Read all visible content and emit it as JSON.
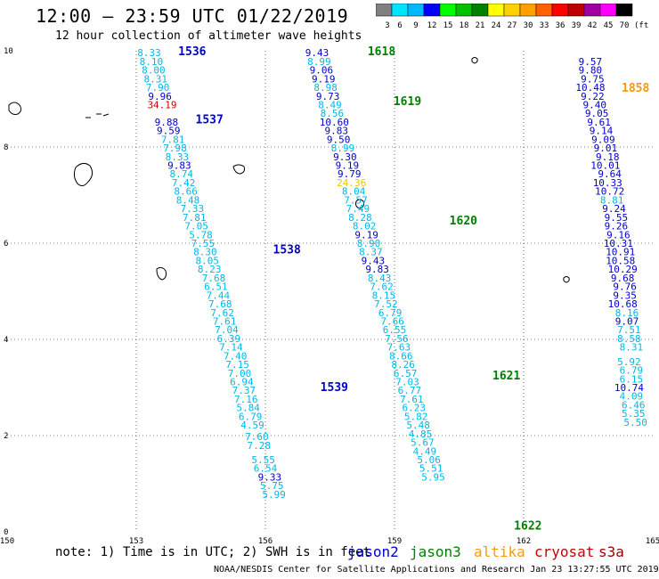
{
  "header": {
    "title": "12:00 – 23:59 UTC 01/22/2019",
    "subtitle": "12 hour collection of altimeter wave heights"
  },
  "color_scale": {
    "labels": [
      "3",
      "6",
      "9",
      "12",
      "15",
      "18",
      "21",
      "24",
      "27",
      "30",
      "33",
      "36",
      "39",
      "42",
      "45",
      "70"
    ],
    "unit": "(ft)",
    "colors": [
      "#808080",
      "#00e5ff",
      "#00b8ff",
      "#0000ff",
      "#00ff00",
      "#00c000",
      "#008000",
      "#ffff00",
      "#ffd000",
      "#ffa000",
      "#ff6000",
      "#ff0000",
      "#c00000",
      "#a000a0",
      "#ff00ff",
      "#000000"
    ]
  },
  "footer": {
    "note": "note: 1) Time is in UTC; 2) SWH is in feet",
    "credit": "NOAA/NESDIS Center for Satellite Applications and Research   Jan 23 13:27:55 UTC 2019",
    "satellites": [
      {
        "name": "jason2",
        "color": "#0000cc"
      },
      {
        "name": "jason3",
        "color": "#008000"
      },
      {
        "name": "altika",
        "color": "#ff9900"
      },
      {
        "name": "cryosat",
        "color": "#cc0000"
      },
      {
        "name": "s3a",
        "color": "#990000"
      }
    ]
  },
  "chart_data": {
    "type": "scatter",
    "title": "12:00 – 23:59 UTC 01/22/2019",
    "xlim": [
      150,
      165
    ],
    "ylim": [
      0,
      10
    ],
    "xticks": [
      "150",
      "153",
      "156",
      "159",
      "162",
      "165"
    ],
    "yticks": [
      "0",
      "2",
      "4",
      "6",
      "8",
      "10"
    ],
    "grid": "dotted",
    "series": [
      {
        "name": "jason2",
        "color": "#0000cc",
        "points": [
          {
            "x": 153.3,
            "y": 9.96,
            "v": "8.33",
            "c": "c"
          },
          {
            "x": 153.35,
            "y": 9.78,
            "v": "8.10",
            "c": "c"
          },
          {
            "x": 153.4,
            "y": 9.6,
            "v": "8.00",
            "c": "c"
          },
          {
            "x": 153.45,
            "y": 9.42,
            "v": "8.31",
            "c": "c"
          },
          {
            "x": 153.5,
            "y": 9.24,
            "v": "7.90",
            "c": "c"
          },
          {
            "x": 153.55,
            "y": 9.06,
            "v": "9.96",
            "c": "b"
          },
          {
            "x": 153.6,
            "y": 8.88,
            "v": "34.19",
            "c": "r"
          },
          {
            "x": 153.7,
            "y": 8.52,
            "v": "9.88",
            "c": "b"
          },
          {
            "x": 153.75,
            "y": 8.34,
            "v": "9.59",
            "c": "b"
          },
          {
            "x": 153.85,
            "y": 8.16,
            "v": "7.81",
            "c": "c"
          },
          {
            "x": 153.9,
            "y": 7.98,
            "v": "7.98",
            "c": "c"
          },
          {
            "x": 153.95,
            "y": 7.8,
            "v": "8.33",
            "c": "c"
          },
          {
            "x": 154.0,
            "y": 7.62,
            "v": "9.83",
            "c": "b"
          },
          {
            "x": 154.05,
            "y": 7.44,
            "v": "8.74",
            "c": "c"
          },
          {
            "x": 154.1,
            "y": 7.26,
            "v": "7.42",
            "c": "c"
          },
          {
            "x": 154.15,
            "y": 7.08,
            "v": "8.66",
            "c": "c"
          },
          {
            "x": 154.2,
            "y": 6.9,
            "v": "8.48",
            "c": "c"
          },
          {
            "x": 154.3,
            "y": 6.72,
            "v": "7.33",
            "c": "c"
          },
          {
            "x": 154.35,
            "y": 6.54,
            "v": "7.81",
            "c": "c"
          },
          {
            "x": 154.4,
            "y": 6.36,
            "v": "7.05",
            "c": "c"
          },
          {
            "x": 154.5,
            "y": 6.18,
            "v": "5.78",
            "c": "c"
          },
          {
            "x": 154.55,
            "y": 6.0,
            "v": "7.55",
            "c": "c"
          },
          {
            "x": 154.6,
            "y": 5.82,
            "v": "8.30",
            "c": "c"
          },
          {
            "x": 154.65,
            "y": 5.64,
            "v": "8.05",
            "c": "c"
          },
          {
            "x": 154.7,
            "y": 5.46,
            "v": "8.23",
            "c": "c"
          },
          {
            "x": 154.8,
            "y": 5.28,
            "v": "7.68",
            "c": "c"
          },
          {
            "x": 154.85,
            "y": 5.1,
            "v": "6.51",
            "c": "c"
          },
          {
            "x": 154.9,
            "y": 4.92,
            "v": "7.44",
            "c": "c"
          },
          {
            "x": 154.95,
            "y": 4.74,
            "v": "7.68",
            "c": "c"
          },
          {
            "x": 155.0,
            "y": 4.56,
            "v": "7.62",
            "c": "c"
          },
          {
            "x": 155.05,
            "y": 4.38,
            "v": "7.61",
            "c": "c"
          },
          {
            "x": 155.1,
            "y": 4.2,
            "v": "7.04",
            "c": "c"
          },
          {
            "x": 155.15,
            "y": 4.02,
            "v": "6.39",
            "c": "c"
          },
          {
            "x": 155.2,
            "y": 3.84,
            "v": "7.14",
            "c": "c"
          },
          {
            "x": 155.3,
            "y": 3.66,
            "v": "7.40",
            "c": "c"
          },
          {
            "x": 155.35,
            "y": 3.48,
            "v": "7.15",
            "c": "c"
          },
          {
            "x": 155.4,
            "y": 3.3,
            "v": "7.00",
            "c": "c"
          },
          {
            "x": 155.45,
            "y": 3.12,
            "v": "6.94",
            "c": "c"
          },
          {
            "x": 155.5,
            "y": 2.94,
            "v": "7.37",
            "c": "c"
          },
          {
            "x": 155.55,
            "y": 2.76,
            "v": "7.16",
            "c": "c"
          },
          {
            "x": 155.6,
            "y": 2.58,
            "v": "5.84",
            "c": "c"
          },
          {
            "x": 155.65,
            "y": 2.4,
            "v": "6.79",
            "c": "c"
          },
          {
            "x": 155.7,
            "y": 2.22,
            "v": "4.59",
            "c": "c"
          },
          {
            "x": 155.8,
            "y": 1.98,
            "v": "7.60",
            "c": "c"
          },
          {
            "x": 155.85,
            "y": 1.8,
            "v": "7.28",
            "c": "c"
          },
          {
            "x": 155.95,
            "y": 1.5,
            "v": "5.55",
            "c": "c"
          },
          {
            "x": 156.0,
            "y": 1.32,
            "v": "6.54",
            "c": "c"
          },
          {
            "x": 156.1,
            "y": 1.14,
            "v": "9.33",
            "c": "b"
          },
          {
            "x": 156.15,
            "y": 0.96,
            "v": "5.75",
            "c": "c"
          },
          {
            "x": 156.2,
            "y": 0.78,
            "v": "5.99",
            "c": "c"
          },
          {
            "x": 157.2,
            "y": 9.96,
            "v": "9.43",
            "c": "b"
          },
          {
            "x": 157.25,
            "y": 9.78,
            "v": "8.99",
            "c": "c"
          },
          {
            "x": 157.3,
            "y": 9.6,
            "v": "9.06",
            "c": "b"
          },
          {
            "x": 157.35,
            "y": 9.42,
            "v": "9.19",
            "c": "b"
          },
          {
            "x": 157.4,
            "y": 9.24,
            "v": "8.98",
            "c": "c"
          },
          {
            "x": 157.45,
            "y": 9.06,
            "v": "9.73",
            "c": "b"
          },
          {
            "x": 157.5,
            "y": 8.88,
            "v": "8.49",
            "c": "c"
          },
          {
            "x": 157.55,
            "y": 8.7,
            "v": "8.56",
            "c": "c"
          },
          {
            "x": 157.6,
            "y": 8.52,
            "v": "10.60",
            "c": "b"
          },
          {
            "x": 157.65,
            "y": 8.34,
            "v": "9.83",
            "c": "b"
          },
          {
            "x": 157.7,
            "y": 8.16,
            "v": "9.50",
            "c": "b"
          },
          {
            "x": 157.8,
            "y": 7.98,
            "v": "8.99",
            "c": "c"
          },
          {
            "x": 157.85,
            "y": 7.8,
            "v": "9.30",
            "c": "b"
          },
          {
            "x": 157.9,
            "y": 7.62,
            "v": "9.19",
            "c": "b"
          },
          {
            "x": 157.95,
            "y": 7.44,
            "v": "9.79",
            "c": "b"
          },
          {
            "x": 158.0,
            "y": 7.26,
            "v": "24.36",
            "c": "y"
          },
          {
            "x": 158.05,
            "y": 7.08,
            "v": "8.04",
            "c": "c"
          },
          {
            "x": 158.1,
            "y": 6.9,
            "v": "7.57",
            "c": "c"
          },
          {
            "x": 158.15,
            "y": 6.72,
            "v": "7.49",
            "c": "c"
          },
          {
            "x": 158.2,
            "y": 6.54,
            "v": "8.28",
            "c": "c"
          },
          {
            "x": 158.3,
            "y": 6.36,
            "v": "8.02",
            "c": "c"
          },
          {
            "x": 158.35,
            "y": 6.18,
            "v": "9.19",
            "c": "b"
          },
          {
            "x": 158.4,
            "y": 6.0,
            "v": "8.90",
            "c": "c"
          },
          {
            "x": 158.45,
            "y": 5.82,
            "v": "8.37",
            "c": "c"
          },
          {
            "x": 158.5,
            "y": 5.64,
            "v": "9.43",
            "c": "b"
          },
          {
            "x": 158.6,
            "y": 5.46,
            "v": "9.83",
            "c": "b"
          },
          {
            "x": 158.65,
            "y": 5.28,
            "v": "8.43",
            "c": "c"
          },
          {
            "x": 158.7,
            "y": 5.1,
            "v": "7.62",
            "c": "c"
          },
          {
            "x": 158.75,
            "y": 4.92,
            "v": "8.15",
            "c": "c"
          },
          {
            "x": 158.8,
            "y": 4.74,
            "v": "7.52",
            "c": "c"
          },
          {
            "x": 158.9,
            "y": 4.56,
            "v": "6.79",
            "c": "c"
          },
          {
            "x": 158.95,
            "y": 4.38,
            "v": "7.66",
            "c": "c"
          },
          {
            "x": 159.0,
            "y": 4.2,
            "v": "6.55",
            "c": "c"
          },
          {
            "x": 159.05,
            "y": 4.02,
            "v": "7.56",
            "c": "c"
          },
          {
            "x": 159.1,
            "y": 3.84,
            "v": "7.63",
            "c": "c"
          },
          {
            "x": 159.15,
            "y": 3.66,
            "v": "8.66",
            "c": "c"
          },
          {
            "x": 159.2,
            "y": 3.48,
            "v": "8.26",
            "c": "c"
          },
          {
            "x": 159.25,
            "y": 3.3,
            "v": "6.57",
            "c": "c"
          },
          {
            "x": 159.3,
            "y": 3.12,
            "v": "7.03",
            "c": "c"
          },
          {
            "x": 159.35,
            "y": 2.94,
            "v": "6.77",
            "c": "c"
          },
          {
            "x": 159.4,
            "y": 2.76,
            "v": "7.61",
            "c": "c"
          },
          {
            "x": 159.45,
            "y": 2.58,
            "v": "6.23",
            "c": "c"
          },
          {
            "x": 159.5,
            "y": 2.4,
            "v": "5.82",
            "c": "c"
          },
          {
            "x": 159.55,
            "y": 2.22,
            "v": "5.48",
            "c": "c"
          },
          {
            "x": 159.6,
            "y": 2.04,
            "v": "4.85",
            "c": "c"
          },
          {
            "x": 159.65,
            "y": 1.86,
            "v": "5.67",
            "c": "c"
          },
          {
            "x": 159.7,
            "y": 1.68,
            "v": "4.49",
            "c": "c"
          },
          {
            "x": 159.8,
            "y": 1.5,
            "v": "5.06",
            "c": "c"
          },
          {
            "x": 159.85,
            "y": 1.32,
            "v": "5.51",
            "c": "c"
          },
          {
            "x": 159.9,
            "y": 1.14,
            "v": "5.95",
            "c": "c"
          },
          {
            "x": 163.55,
            "y": 9.78,
            "v": "9.57",
            "c": "b"
          },
          {
            "x": 163.55,
            "y": 9.6,
            "v": "9.80",
            "c": "b"
          },
          {
            "x": 163.6,
            "y": 9.42,
            "v": "9.75",
            "c": "b"
          },
          {
            "x": 163.55,
            "y": 9.24,
            "v": "10.48",
            "c": "b"
          },
          {
            "x": 163.6,
            "y": 9.06,
            "v": "9.22",
            "c": "b"
          },
          {
            "x": 163.65,
            "y": 8.88,
            "v": "9.40",
            "c": "b"
          },
          {
            "x": 163.7,
            "y": 8.7,
            "v": "9.05",
            "c": "b"
          },
          {
            "x": 163.75,
            "y": 8.52,
            "v": "9.61",
            "c": "b"
          },
          {
            "x": 163.8,
            "y": 8.34,
            "v": "9.14",
            "c": "b"
          },
          {
            "x": 163.85,
            "y": 8.16,
            "v": "9.09",
            "c": "b"
          },
          {
            "x": 163.9,
            "y": 7.98,
            "v": "9.01",
            "c": "b"
          },
          {
            "x": 163.95,
            "y": 7.8,
            "v": "9.18",
            "c": "b"
          },
          {
            "x": 163.9,
            "y": 7.62,
            "v": "10.01",
            "c": "b"
          },
          {
            "x": 164.0,
            "y": 7.44,
            "v": "9.64",
            "c": "b"
          },
          {
            "x": 163.95,
            "y": 7.26,
            "v": "10.33",
            "c": "b"
          },
          {
            "x": 164.0,
            "y": 7.08,
            "v": "10.72",
            "c": "b"
          },
          {
            "x": 164.05,
            "y": 6.9,
            "v": "8.81",
            "c": "c"
          },
          {
            "x": 164.1,
            "y": 6.72,
            "v": "9.24",
            "c": "b"
          },
          {
            "x": 164.15,
            "y": 6.54,
            "v": "9.55",
            "c": "b"
          },
          {
            "x": 164.15,
            "y": 6.36,
            "v": "9.26",
            "c": "b"
          },
          {
            "x": 164.2,
            "y": 6.18,
            "v": "9.16",
            "c": "b"
          },
          {
            "x": 164.2,
            "y": 6.0,
            "v": "10.31",
            "c": "b"
          },
          {
            "x": 164.25,
            "y": 5.82,
            "v": "10.91",
            "c": "b"
          },
          {
            "x": 164.25,
            "y": 5.64,
            "v": "10.58",
            "c": "b"
          },
          {
            "x": 164.3,
            "y": 5.46,
            "v": "10.29",
            "c": "b"
          },
          {
            "x": 164.3,
            "y": 5.28,
            "v": "9.68",
            "c": "b"
          },
          {
            "x": 164.35,
            "y": 5.1,
            "v": "9.76",
            "c": "b"
          },
          {
            "x": 164.35,
            "y": 4.92,
            "v": "9.35",
            "c": "b"
          },
          {
            "x": 164.3,
            "y": 4.74,
            "v": "10.68",
            "c": "b"
          },
          {
            "x": 164.4,
            "y": 4.56,
            "v": "8.16",
            "c": "c"
          },
          {
            "x": 164.4,
            "y": 4.38,
            "v": "9.07",
            "c": "b"
          },
          {
            "x": 164.45,
            "y": 4.2,
            "v": "7.51",
            "c": "c"
          },
          {
            "x": 164.45,
            "y": 4.02,
            "v": "8.58",
            "c": "c"
          },
          {
            "x": 164.5,
            "y": 3.84,
            "v": "8.31",
            "c": "c"
          },
          {
            "x": 164.45,
            "y": 3.54,
            "v": "5.92",
            "c": "c"
          },
          {
            "x": 164.5,
            "y": 3.36,
            "v": "6.79",
            "c": "c"
          },
          {
            "x": 164.5,
            "y": 3.18,
            "v": "6.15",
            "c": "c"
          },
          {
            "x": 164.45,
            "y": 3.0,
            "v": "10.74",
            "c": "b"
          },
          {
            "x": 164.5,
            "y": 2.82,
            "v": "4.09",
            "c": "c"
          },
          {
            "x": 164.55,
            "y": 2.64,
            "v": "6.46",
            "c": "c"
          },
          {
            "x": 164.55,
            "y": 2.46,
            "v": "5.35",
            "c": "c"
          },
          {
            "x": 164.6,
            "y": 2.28,
            "v": "5.50",
            "c": "c"
          }
        ]
      }
    ],
    "pass_labels": [
      {
        "x": 154.3,
        "y": 10.0,
        "text": "1536",
        "color": "#0000cc"
      },
      {
        "x": 154.7,
        "y": 8.58,
        "text": "1537",
        "color": "#0000cc"
      },
      {
        "x": 156.5,
        "y": 5.88,
        "text": "1538",
        "color": "#0000cc"
      },
      {
        "x": 157.6,
        "y": 3.02,
        "text": "1539",
        "color": "#0000cc"
      },
      {
        "x": 158.7,
        "y": 10.0,
        "text": "1618",
        "color": "#008000"
      },
      {
        "x": 159.3,
        "y": 8.96,
        "text": "1619",
        "color": "#008000"
      },
      {
        "x": 160.6,
        "y": 6.48,
        "text": "1620",
        "color": "#008000"
      },
      {
        "x": 161.6,
        "y": 3.26,
        "text": "1621",
        "color": "#008000"
      },
      {
        "x": 162.1,
        "y": 0.14,
        "text": "1622",
        "color": "#008000"
      },
      {
        "x": 164.6,
        "y": 9.24,
        "text": "1858",
        "color": "#ff9900"
      }
    ]
  }
}
